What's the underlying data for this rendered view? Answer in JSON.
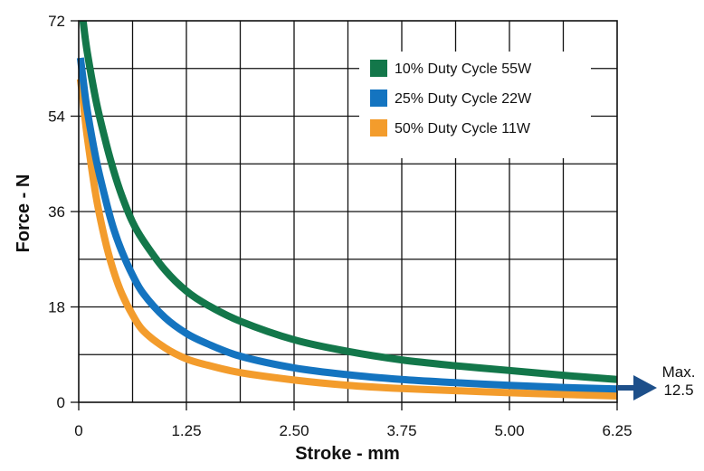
{
  "chart_data": {
    "type": "line",
    "xlabel": "Stroke - mm",
    "ylabel": "Force - N",
    "xlim": [
      0,
      6.25
    ],
    "ylim": [
      0,
      72
    ],
    "x_ticks": [
      "0",
      "1.25",
      "2.50",
      "3.75",
      "5.00",
      "6.25"
    ],
    "y_ticks": [
      "0",
      "18",
      "36",
      "54",
      "72"
    ],
    "grid": true,
    "legend_position": "top-right",
    "annotation": {
      "line1": "Max.",
      "line2": "12.5",
      "color": "#1d4f8a"
    },
    "series": [
      {
        "name": "10% Duty Cycle 55W",
        "color": "#13774a",
        "points": [
          [
            0.05,
            72
          ],
          [
            0.1,
            66
          ],
          [
            0.2,
            57
          ],
          [
            0.3,
            50
          ],
          [
            0.4,
            44
          ],
          [
            0.5,
            39
          ],
          [
            0.625,
            34
          ],
          [
            0.75,
            30.5
          ],
          [
            1.0,
            25
          ],
          [
            1.25,
            21
          ],
          [
            1.5,
            18.3
          ],
          [
            1.875,
            15.3
          ],
          [
            2.5,
            11.8
          ],
          [
            3.125,
            9.6
          ],
          [
            3.75,
            8.0
          ],
          [
            4.375,
            6.9
          ],
          [
            5.0,
            6.0
          ],
          [
            5.625,
            5.1
          ],
          [
            6.25,
            4.3
          ]
        ]
      },
      {
        "name": "25% Duty Cycle 22W",
        "color": "#1474c0",
        "points": [
          [
            0.02,
            65
          ],
          [
            0.05,
            61
          ],
          [
            0.1,
            55
          ],
          [
            0.2,
            46
          ],
          [
            0.3,
            39
          ],
          [
            0.4,
            33
          ],
          [
            0.5,
            28.5
          ],
          [
            0.625,
            24
          ],
          [
            0.75,
            20.5
          ],
          [
            1.0,
            16
          ],
          [
            1.25,
            13
          ],
          [
            1.5,
            11
          ],
          [
            1.875,
            8.7
          ],
          [
            2.5,
            6.5
          ],
          [
            3.125,
            5.2
          ],
          [
            3.75,
            4.3
          ],
          [
            4.375,
            3.7
          ],
          [
            5.0,
            3.2
          ],
          [
            5.625,
            2.8
          ],
          [
            6.25,
            2.5
          ]
        ]
      },
      {
        "name": "50% Duty Cycle 11W",
        "color": "#f39c2c",
        "points": [
          [
            0.02,
            61
          ],
          [
            0.05,
            57
          ],
          [
            0.1,
            50
          ],
          [
            0.2,
            39
          ],
          [
            0.3,
            31
          ],
          [
            0.4,
            25
          ],
          [
            0.5,
            20.5
          ],
          [
            0.625,
            16.5
          ],
          [
            0.75,
            13.5
          ],
          [
            1.0,
            10.3
          ],
          [
            1.25,
            8.2
          ],
          [
            1.5,
            7.0
          ],
          [
            1.875,
            5.6
          ],
          [
            2.5,
            4.2
          ],
          [
            3.125,
            3.2
          ],
          [
            3.75,
            2.6
          ],
          [
            4.375,
            2.2
          ],
          [
            5.0,
            1.8
          ],
          [
            5.625,
            1.5
          ],
          [
            6.25,
            1.2
          ]
        ]
      }
    ]
  }
}
